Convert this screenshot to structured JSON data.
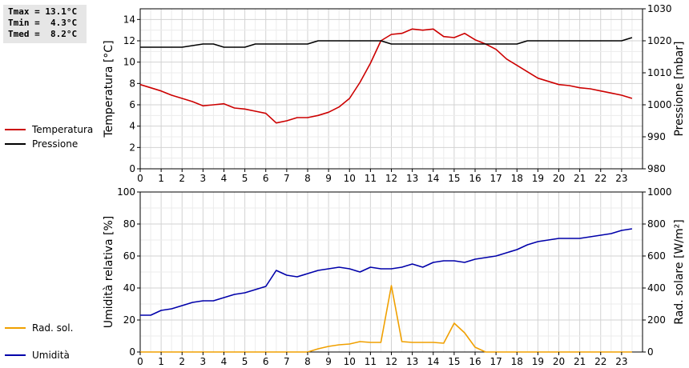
{
  "stats": {
    "tmax": "Tmax = 13.1°C",
    "tmin": "Tmin =  4.3°C",
    "tmed": "Tmed =  8.2°C"
  },
  "legend_top": [
    {
      "label": "Temperatura",
      "color": "#cc0000"
    },
    {
      "label": "Pressione",
      "color": "#000000"
    }
  ],
  "legend_bottom": [
    {
      "label": "Umidità",
      "color": "#0000aa"
    },
    {
      "label": "Rad. sol.",
      "color": "#f0a000"
    }
  ],
  "chart_data": [
    {
      "type": "line",
      "xlabel": "",
      "xlim": [
        0,
        24
      ],
      "x_ticks": [
        0,
        1,
        2,
        3,
        4,
        5,
        6,
        7,
        8,
        9,
        10,
        11,
        12,
        13,
        14,
        15,
        16,
        17,
        18,
        19,
        20,
        21,
        22,
        23
      ],
      "ylabel": "Temperatura [°C]",
      "ylim": [
        0,
        15
      ],
      "y_ticks": [
        0,
        2,
        4,
        6,
        8,
        10,
        12,
        14
      ],
      "y2label": "Pressione [mbar]",
      "y2lim": [
        980,
        1030
      ],
      "y2_ticks": [
        980,
        990,
        1000,
        1010,
        1020,
        1030
      ],
      "grid": true,
      "series": [
        {
          "name": "Temperatura",
          "axis": "left",
          "color": "#cc0000",
          "points": [
            [
              0,
              7.9
            ],
            [
              0.5,
              7.6
            ],
            [
              1,
              7.3
            ],
            [
              1.5,
              6.9
            ],
            [
              2,
              6.6
            ],
            [
              2.5,
              6.3
            ],
            [
              3,
              5.9
            ],
            [
              3.5,
              6.0
            ],
            [
              4,
              6.1
            ],
            [
              4.5,
              5.7
            ],
            [
              5,
              5.6
            ],
            [
              5.5,
              5.4
            ],
            [
              6,
              5.2
            ],
            [
              6.5,
              4.3
            ],
            [
              7,
              4.5
            ],
            [
              7.5,
              4.8
            ],
            [
              8,
              4.8
            ],
            [
              8.5,
              5.0
            ],
            [
              9,
              5.3
            ],
            [
              9.5,
              5.8
            ],
            [
              10,
              6.6
            ],
            [
              10.5,
              8.1
            ],
            [
              11,
              9.9
            ],
            [
              11.5,
              12.0
            ],
            [
              12,
              12.6
            ],
            [
              12.5,
              12.7
            ],
            [
              13,
              13.1
            ],
            [
              13.5,
              13.0
            ],
            [
              14,
              13.1
            ],
            [
              14.5,
              12.4
            ],
            [
              15,
              12.3
            ],
            [
              15.5,
              12.7
            ],
            [
              16,
              12.1
            ],
            [
              16.5,
              11.7
            ],
            [
              17,
              11.2
            ],
            [
              17.5,
              10.3
            ],
            [
              18,
              9.7
            ],
            [
              18.5,
              9.1
            ],
            [
              19,
              8.5
            ],
            [
              19.5,
              8.2
            ],
            [
              20,
              7.9
            ],
            [
              20.5,
              7.8
            ],
            [
              21,
              7.6
            ],
            [
              21.5,
              7.5
            ],
            [
              22,
              7.3
            ],
            [
              22.5,
              7.1
            ],
            [
              23,
              6.9
            ],
            [
              23.5,
              6.6
            ]
          ]
        },
        {
          "name": "Pressione",
          "axis": "right",
          "color": "#000000",
          "points": [
            [
              0,
              1018
            ],
            [
              0.5,
              1018
            ],
            [
              1,
              1018
            ],
            [
              1.5,
              1018
            ],
            [
              2,
              1018
            ],
            [
              2.5,
              1018.5
            ],
            [
              3,
              1019
            ],
            [
              3.5,
              1019
            ],
            [
              4,
              1018
            ],
            [
              4.5,
              1018
            ],
            [
              5,
              1018
            ],
            [
              5.5,
              1019
            ],
            [
              6,
              1019
            ],
            [
              7,
              1019
            ],
            [
              8,
              1019
            ],
            [
              8.5,
              1020
            ],
            [
              9,
              1020
            ],
            [
              10,
              1020
            ],
            [
              11,
              1020
            ],
            [
              11.5,
              1020
            ],
            [
              12,
              1019
            ],
            [
              13,
              1019
            ],
            [
              14,
              1019
            ],
            [
              15,
              1019
            ],
            [
              16,
              1019
            ],
            [
              17,
              1019
            ],
            [
              18,
              1019
            ],
            [
              18.5,
              1020
            ],
            [
              19,
              1020
            ],
            [
              20,
              1020
            ],
            [
              21,
              1020
            ],
            [
              22,
              1020
            ],
            [
              23,
              1020
            ],
            [
              23.5,
              1021
            ]
          ]
        }
      ]
    },
    {
      "type": "line",
      "xlabel": "",
      "xlim": [
        0,
        24
      ],
      "x_ticks": [
        0,
        1,
        2,
        3,
        4,
        5,
        6,
        7,
        8,
        9,
        10,
        11,
        12,
        13,
        14,
        15,
        16,
        17,
        18,
        19,
        20,
        21,
        22,
        23
      ],
      "ylabel": "Umidità relativa [%]",
      "ylim": [
        0,
        100
      ],
      "y_ticks": [
        0,
        20,
        40,
        60,
        80,
        100
      ],
      "y2label": "Rad. solare [W/m²]",
      "y2lim": [
        0,
        1000
      ],
      "y2_ticks": [
        0,
        200,
        400,
        600,
        800,
        1000
      ],
      "grid": true,
      "series": [
        {
          "name": "Umidità",
          "axis": "left",
          "color": "#0000aa",
          "points": [
            [
              0,
              23
            ],
            [
              0.5,
              23
            ],
            [
              1,
              26
            ],
            [
              1.5,
              27
            ],
            [
              2,
              29
            ],
            [
              2.5,
              31
            ],
            [
              3,
              32
            ],
            [
              3.5,
              32
            ],
            [
              4,
              34
            ],
            [
              4.5,
              36
            ],
            [
              5,
              37
            ],
            [
              5.5,
              39
            ],
            [
              6,
              41
            ],
            [
              6.5,
              51
            ],
            [
              7,
              48
            ],
            [
              7.5,
              47
            ],
            [
              8,
              49
            ],
            [
              8.5,
              51
            ],
            [
              9,
              52
            ],
            [
              9.5,
              53
            ],
            [
              10,
              52
            ],
            [
              10.5,
              50
            ],
            [
              11,
              53
            ],
            [
              11.5,
              52
            ],
            [
              12,
              52
            ],
            [
              12.5,
              53
            ],
            [
              13,
              55
            ],
            [
              13.5,
              53
            ],
            [
              14,
              56
            ],
            [
              14.5,
              57
            ],
            [
              15,
              57
            ],
            [
              15.5,
              56
            ],
            [
              16,
              58
            ],
            [
              16.5,
              59
            ],
            [
              17,
              60
            ],
            [
              17.5,
              62
            ],
            [
              18,
              64
            ],
            [
              18.5,
              67
            ],
            [
              19,
              69
            ],
            [
              19.5,
              70
            ],
            [
              20,
              71
            ],
            [
              21,
              71
            ],
            [
              21.5,
              72
            ],
            [
              22,
              73
            ],
            [
              22.5,
              74
            ],
            [
              23,
              76
            ],
            [
              23.5,
              77
            ]
          ]
        },
        {
          "name": "Rad. sol.",
          "axis": "right",
          "color": "#f0a000",
          "points": [
            [
              0,
              0
            ],
            [
              1,
              0
            ],
            [
              2,
              0
            ],
            [
              3,
              0
            ],
            [
              4,
              0
            ],
            [
              5,
              0
            ],
            [
              6,
              0
            ],
            [
              7,
              0
            ],
            [
              8,
              0
            ],
            [
              8.5,
              20
            ],
            [
              9,
              35
            ],
            [
              9.5,
              45
            ],
            [
              10,
              50
            ],
            [
              10.5,
              65
            ],
            [
              11,
              60
            ],
            [
              11.5,
              60
            ],
            [
              12,
              415
            ],
            [
              12.5,
              65
            ],
            [
              13,
              60
            ],
            [
              13.5,
              60
            ],
            [
              14,
              60
            ],
            [
              14.5,
              55
            ],
            [
              15,
              180
            ],
            [
              15.5,
              120
            ],
            [
              16,
              30
            ],
            [
              16.5,
              0
            ],
            [
              17,
              0
            ],
            [
              18,
              0
            ],
            [
              19,
              0
            ],
            [
              20,
              0
            ],
            [
              21,
              0
            ],
            [
              22,
              0
            ],
            [
              23,
              0
            ],
            [
              23.5,
              0
            ]
          ]
        }
      ]
    }
  ]
}
